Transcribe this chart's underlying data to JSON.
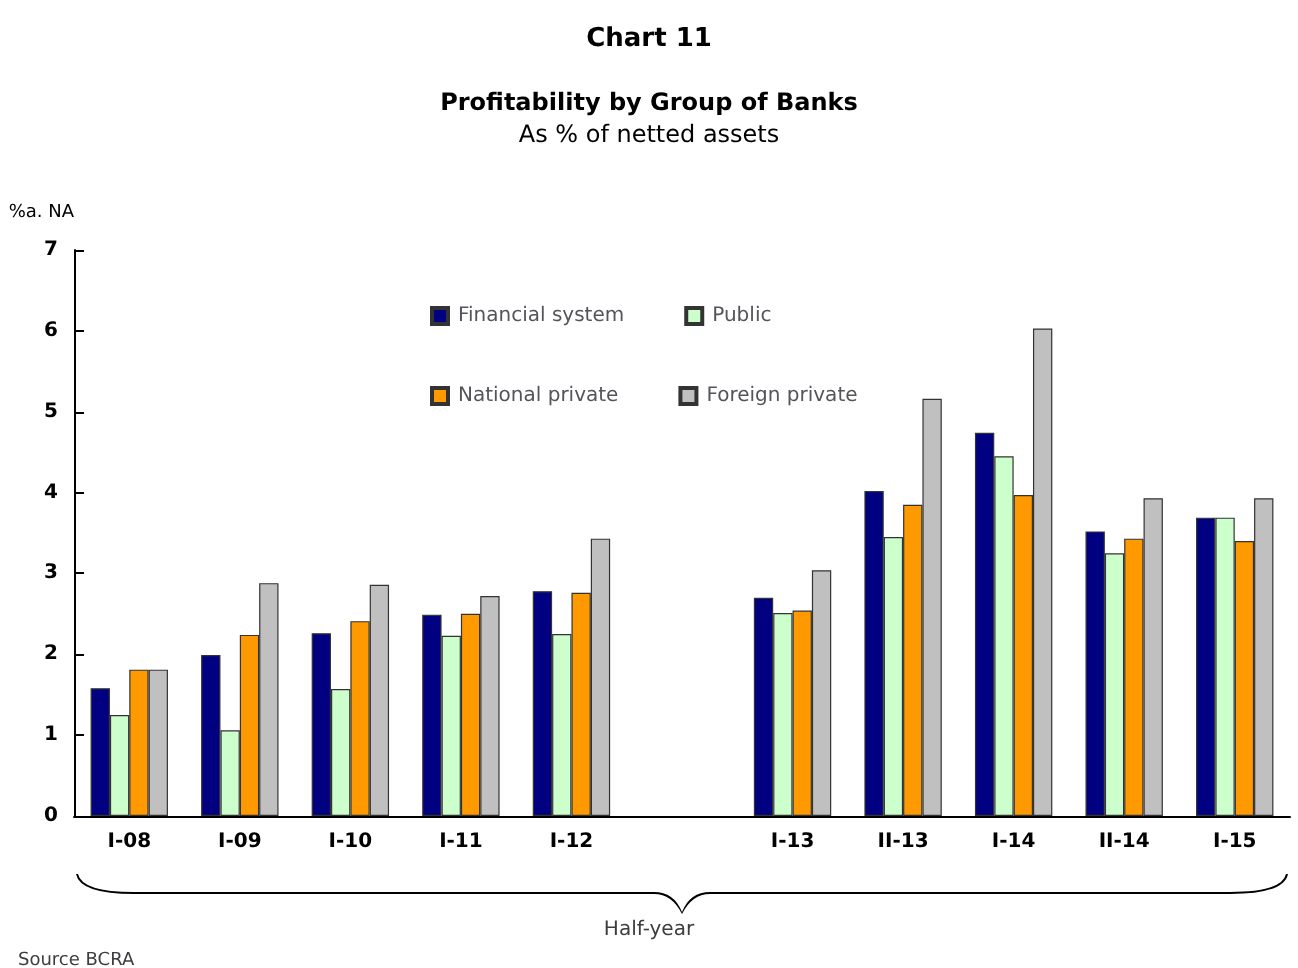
{
  "chart_data": {
    "type": "bar",
    "title": "Chart 11",
    "subtitle": "Profitability by Group of Banks\nAs % of netted assets",
    "ylabel": "%a. NA",
    "xlabel": "Half-year",
    "annotations": [
      "Source BCRA"
    ],
    "categories": [
      "I-08",
      "I-09",
      "I-10",
      "I-11",
      "I-12",
      null,
      "I-13",
      "II-13",
      "I-14",
      "II-14",
      "I-15"
    ],
    "series": [
      {
        "name": "Financial system",
        "color": "#000080",
        "values": [
          1.58,
          1.99,
          2.26,
          2.49,
          2.78,
          null,
          2.7,
          4.02,
          4.74,
          3.52,
          3.69
        ]
      },
      {
        "name": "Public",
        "color": "#ccffcc",
        "values": [
          1.25,
          1.06,
          1.57,
          2.23,
          2.25,
          null,
          2.51,
          3.45,
          4.45,
          3.25,
          3.69
        ]
      },
      {
        "name": "National private",
        "color": "#ff9900",
        "values": [
          1.81,
          2.24,
          2.41,
          2.5,
          2.76,
          null,
          2.54,
          3.85,
          3.97,
          3.43,
          3.4
        ]
      },
      {
        "name": "Foreign private",
        "color": "#c0c0c0",
        "values": [
          1.81,
          2.88,
          2.86,
          2.72,
          3.43,
          null,
          3.04,
          5.16,
          6.03,
          3.93,
          3.93
        ]
      }
    ],
    "ylim": [
      0,
      7
    ],
    "yticks": [
      0,
      1,
      2,
      3,
      4,
      5,
      6,
      7
    ],
    "grid": false,
    "legend": "top"
  }
}
